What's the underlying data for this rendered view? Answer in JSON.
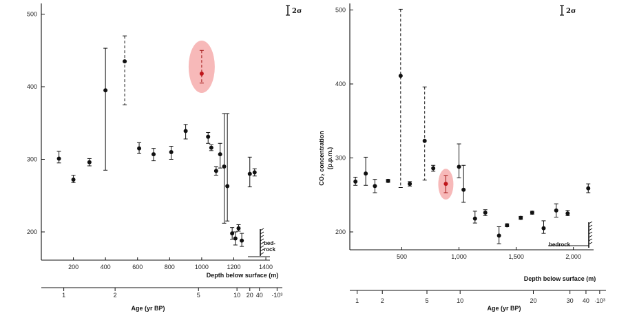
{
  "chart_data": [
    {
      "type": "scatter",
      "title": "",
      "ylabel": "",
      "xlabel": "Depth below surface (m)",
      "secondary_xlabel": "Age (yr BP)",
      "ylim": [
        150,
        520
      ],
      "xlim": [
        0,
        1450
      ],
      "yticks": [
        200,
        300,
        400,
        500
      ],
      "xticks": [
        200,
        400,
        600,
        800,
        1000,
        1200,
        1400
      ],
      "age_axis_ticks": [
        "1",
        "2",
        "5",
        "10",
        "20",
        "40",
        "·10³"
      ],
      "age_axis_tick_depths": [
        140,
        460,
        980,
        1220,
        1300,
        1360,
        1470
      ],
      "error_key": "2σ",
      "bedrock_label": "bed-\nrock",
      "highlight_color": "#f08080",
      "points": [
        {
          "x": 110,
          "y": 301,
          "ylo": 295,
          "yhi": 311
        },
        {
          "x": 200,
          "y": 272,
          "ylo": 268,
          "yhi": 278
        },
        {
          "x": 300,
          "y": 296,
          "ylo": 291,
          "yhi": 301
        },
        {
          "x": 400,
          "y": 395,
          "ylo": 285,
          "yhi": 453
        },
        {
          "x": 520,
          "y": 435,
          "ylo": 375,
          "yhi": 470,
          "dashed": true
        },
        {
          "x": 610,
          "y": 315,
          "ylo": 308,
          "yhi": 323
        },
        {
          "x": 700,
          "y": 307,
          "ylo": 298,
          "yhi": 315
        },
        {
          "x": 810,
          "y": 310,
          "ylo": 300,
          "yhi": 318
        },
        {
          "x": 900,
          "y": 339,
          "ylo": 328,
          "yhi": 348
        },
        {
          "x": 1000,
          "y": 418,
          "ylo": 405,
          "yhi": 450,
          "dashed": true,
          "highlight": true
        },
        {
          "x": 1040,
          "y": 331,
          "ylo": 322,
          "yhi": 337
        },
        {
          "x": 1060,
          "y": 316,
          "ylo": 312,
          "yhi": 320
        },
        {
          "x": 1090,
          "y": 284,
          "ylo": 278,
          "yhi": 290
        },
        {
          "x": 1115,
          "y": 307,
          "ylo": 288,
          "yhi": 322
        },
        {
          "x": 1140,
          "y": 290,
          "ylo": 212,
          "yhi": 363
        },
        {
          "x": 1160,
          "y": 263,
          "ylo": 215,
          "yhi": 363
        },
        {
          "x": 1190,
          "y": 198,
          "ylo": 190,
          "yhi": 206
        },
        {
          "x": 1210,
          "y": 191,
          "ylo": 182,
          "yhi": 200
        },
        {
          "x": 1230,
          "y": 205,
          "ylo": 201,
          "yhi": 210
        },
        {
          "x": 1250,
          "y": 188,
          "ylo": 180,
          "yhi": 198
        },
        {
          "x": 1300,
          "y": 280,
          "ylo": 262,
          "yhi": 303
        },
        {
          "x": 1330,
          "y": 282,
          "ylo": 277,
          "yhi": 287
        }
      ]
    },
    {
      "type": "scatter",
      "title": "",
      "ylabel": "CO₂ concentration",
      "ylabel_unit": "(p.p.m.)",
      "xlabel": "Depth below surface (m)",
      "secondary_xlabel": "Age (yr BP)",
      "ylim": [
        170,
        520
      ],
      "xlim": [
        0,
        2180
      ],
      "yticks": [
        200,
        300,
        400,
        500
      ],
      "xticks": [
        500,
        1000,
        1500,
        2000
      ],
      "xtick_labels": [
        "500",
        "1,000",
        "1,500",
        "2,000"
      ],
      "age_axis_ticks": [
        "1",
        "2",
        "5",
        "10",
        "20",
        "30",
        "40",
        "·10³"
      ],
      "age_axis_tick_depths": [
        110,
        330,
        720,
        1010,
        1650,
        1970,
        2110,
        2230
      ],
      "error_key": "2σ",
      "bedrock_label": "bedrock",
      "highlight_color": "#f08080",
      "points": [
        {
          "x": 95,
          "y": 268,
          "ylo": 263,
          "yhi": 274
        },
        {
          "x": 185,
          "y": 279,
          "ylo": 263,
          "yhi": 301
        },
        {
          "x": 265,
          "y": 262,
          "ylo": 253,
          "yhi": 271
        },
        {
          "x": 380,
          "y": 269,
          "ylo": 267,
          "yhi": 271
        },
        {
          "x": 490,
          "y": 411,
          "ylo": 260,
          "yhi": 501,
          "dashed": true
        },
        {
          "x": 570,
          "y": 265,
          "ylo": 262,
          "yhi": 268
        },
        {
          "x": 700,
          "y": 323,
          "ylo": 270,
          "yhi": 396,
          "dashed": true
        },
        {
          "x": 775,
          "y": 286,
          "ylo": 282,
          "yhi": 290
        },
        {
          "x": 885,
          "y": 265,
          "ylo": 253,
          "yhi": 276,
          "highlight": true
        },
        {
          "x": 1000,
          "y": 288,
          "ylo": 273,
          "yhi": 319
        },
        {
          "x": 1040,
          "y": 257,
          "ylo": 240,
          "yhi": 290
        },
        {
          "x": 1140,
          "y": 218,
          "ylo": 212,
          "yhi": 228
        },
        {
          "x": 1230,
          "y": 226,
          "ylo": 222,
          "yhi": 230
        },
        {
          "x": 1350,
          "y": 195,
          "ylo": 184,
          "yhi": 207
        },
        {
          "x": 1420,
          "y": 209,
          "ylo": 207,
          "yhi": 211
        },
        {
          "x": 1540,
          "y": 219,
          "ylo": 217,
          "yhi": 221
        },
        {
          "x": 1640,
          "y": 226,
          "ylo": 224,
          "yhi": 228
        },
        {
          "x": 1740,
          "y": 205,
          "ylo": 198,
          "yhi": 215
        },
        {
          "x": 1850,
          "y": 229,
          "ylo": 220,
          "yhi": 238
        },
        {
          "x": 1950,
          "y": 225,
          "ylo": 222,
          "yhi": 229
        },
        {
          "x": 2130,
          "y": 259,
          "ylo": 253,
          "yhi": 265
        }
      ]
    }
  ]
}
